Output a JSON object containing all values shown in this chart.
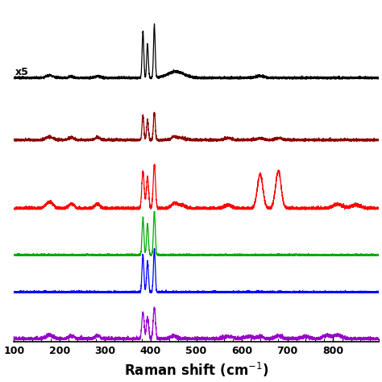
{
  "xlabel": "Raman shift (cm⁻¹)",
  "xlim": [
    100,
    900
  ],
  "xticks": [
    100,
    200,
    300,
    400,
    500,
    600,
    700,
    800
  ],
  "colors": [
    "black",
    "#8B0000",
    "red",
    "#00AA00",
    "blue",
    "#9900CC"
  ],
  "offsets": [
    4.2,
    3.2,
    2.1,
    1.35,
    0.75,
    0.0
  ],
  "x5_label": "x5",
  "background": "#ffffff",
  "linewidth": 0.9,
  "noise_seed": 10
}
